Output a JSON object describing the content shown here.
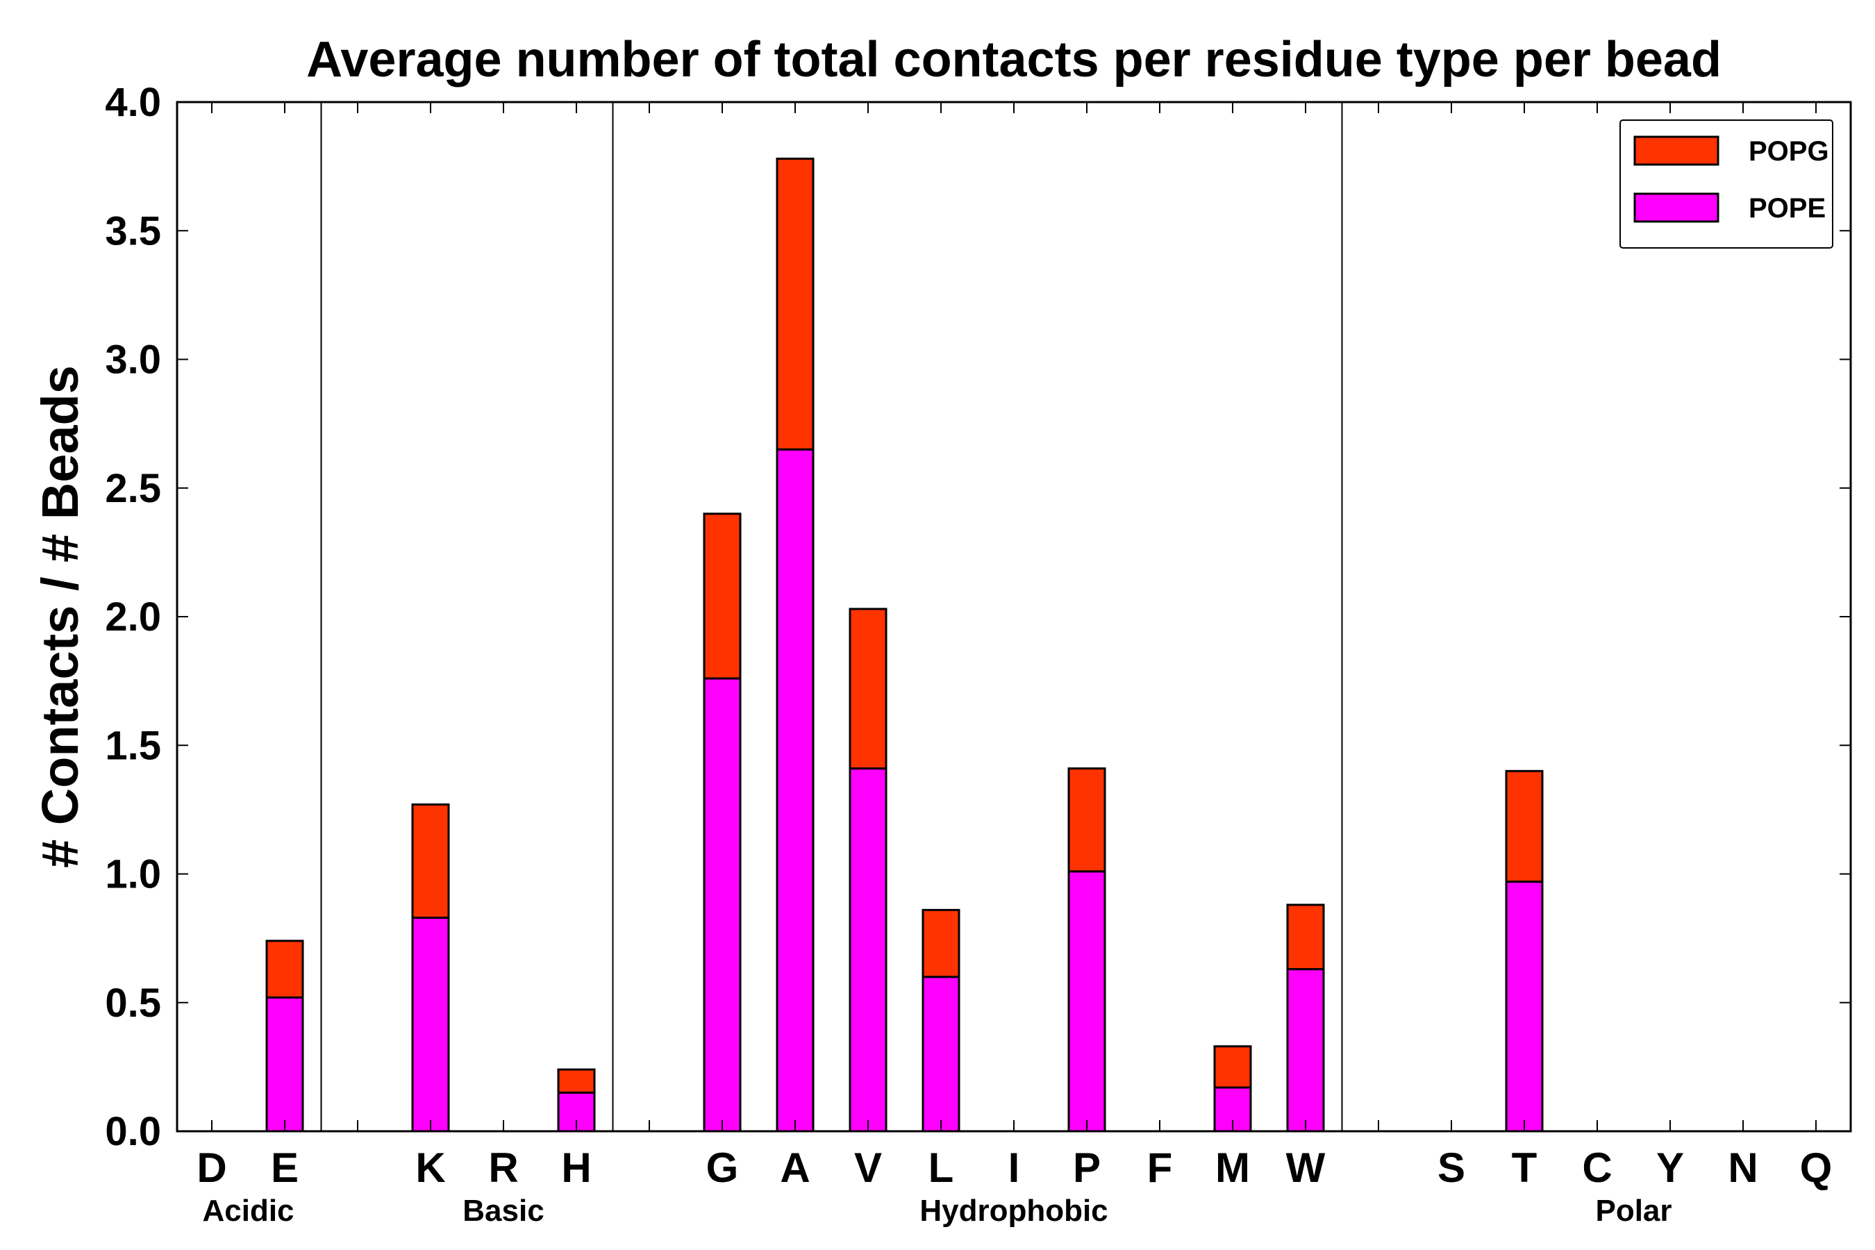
{
  "chart_data": {
    "type": "bar",
    "stacked": true,
    "title": "Average number of total contacts per residue type per bead",
    "xlabel": "",
    "ylabel": "# Contacts / # Beads",
    "ylim": [
      0,
      4.0
    ],
    "yticks": [
      "0.0",
      "0.5",
      "1.0",
      "1.5",
      "2.0",
      "2.5",
      "3.0",
      "3.5",
      "4.0"
    ],
    "grid": false,
    "legend_position": "top-right",
    "categories": [
      "D",
      "E",
      "",
      "K",
      "R",
      "H",
      "",
      "G",
      "A",
      "V",
      "L",
      "I",
      "P",
      "F",
      "M",
      "W",
      "",
      "S",
      "T",
      "C",
      "Y",
      "N",
      "Q"
    ],
    "series": [
      {
        "name": "POPE",
        "color": "#ff00ff",
        "values": [
          0,
          0.52,
          0,
          0.83,
          0,
          0.15,
          0,
          1.76,
          2.65,
          1.41,
          0.6,
          0,
          1.01,
          0,
          0.17,
          0.63,
          0,
          0,
          0.97,
          0,
          0,
          0,
          0
        ]
      },
      {
        "name": "POPG",
        "color": "#ff3300",
        "values": [
          0,
          0.22,
          0,
          0.44,
          0,
          0.09,
          0,
          0.64,
          1.13,
          0.62,
          0.26,
          0,
          0.4,
          0,
          0.16,
          0.25,
          0,
          0,
          0.43,
          0,
          0,
          0,
          0
        ]
      }
    ],
    "groups": [
      {
        "label": "Acidic",
        "start": 0,
        "end": 1
      },
      {
        "label": "Basic",
        "start": 3,
        "end": 5
      },
      {
        "label": "Hydrophobic",
        "start": 7,
        "end": 15
      },
      {
        "label": "Polar",
        "start": 17,
        "end": 22
      }
    ],
    "group_separators_after": [
      1,
      5,
      15
    ]
  }
}
